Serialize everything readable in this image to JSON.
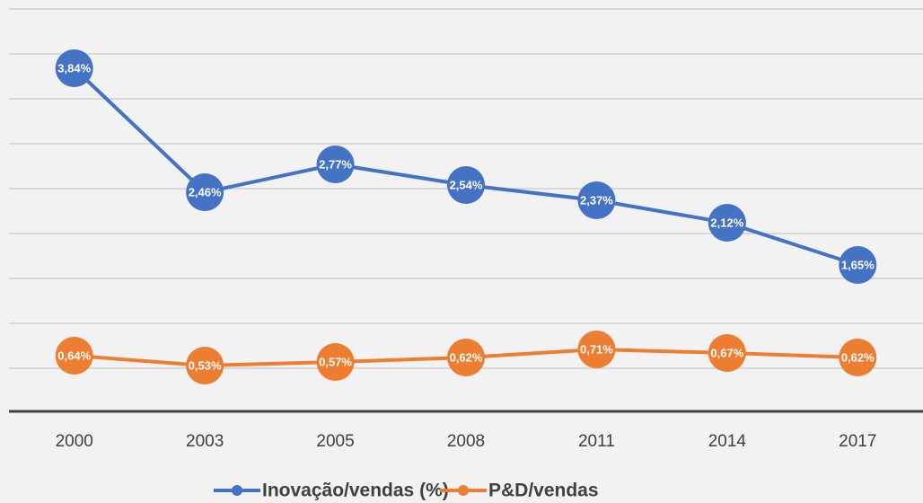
{
  "chart_data": {
    "type": "line",
    "categories": [
      "2000",
      "2003",
      "2005",
      "2008",
      "2011",
      "2014",
      "2017"
    ],
    "series": [
      {
        "name": "Inovação/vendas (%)",
        "color": "#4472c4",
        "values": [
          3.84,
          2.46,
          2.77,
          2.54,
          2.37,
          2.12,
          1.65
        ],
        "value_labels": [
          "3,84%",
          "2,46%",
          "2,77%",
          "2,54%",
          "2,37%",
          "2,12%",
          "1,65%"
        ]
      },
      {
        "name": "P&D/vendas",
        "color": "#ed7d31",
        "values": [
          0.64,
          0.53,
          0.57,
          0.62,
          0.71,
          0.67,
          0.62
        ],
        "value_labels": [
          "0,64%",
          "0,53%",
          "0,57%",
          "0,62%",
          "0,71%",
          "0,67%",
          "0,62%"
        ]
      }
    ],
    "ylim": [
      0,
      4.5
    ],
    "yticks": [
      0,
      0.5,
      1,
      1.5,
      2,
      2.5,
      3,
      3.5,
      4,
      4.5
    ],
    "grid": true,
    "legend": "bottom"
  }
}
